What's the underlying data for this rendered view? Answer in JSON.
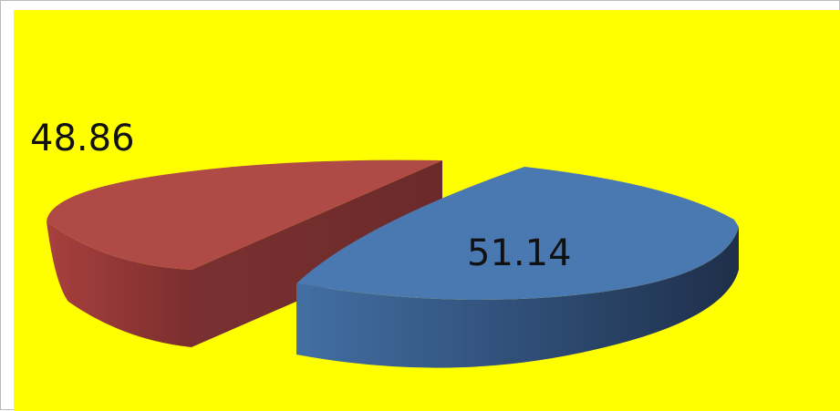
{
  "chart_data": {
    "type": "pie",
    "style": "3d-exploded",
    "background": "#FFFF00",
    "slices": [
      {
        "value": 48.86,
        "label": "48.86",
        "color": "#B04A47"
      },
      {
        "value": 51.14,
        "label": "51.14",
        "color": "#4A78B0"
      }
    ]
  }
}
